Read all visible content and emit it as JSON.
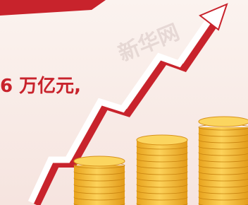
{
  "text": {
    "amount": "6 万亿元,"
  },
  "watermark": "新华网"
}
